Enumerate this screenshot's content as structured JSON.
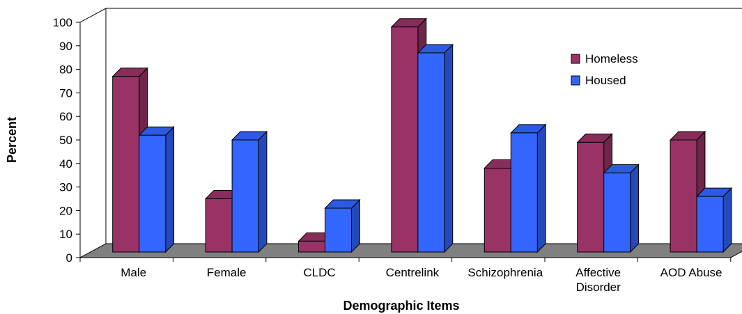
{
  "chart_data": {
    "type": "bar",
    "title": "",
    "xlabel": "Demographic Items",
    "ylabel": "Percent",
    "ylim": [
      0,
      100
    ],
    "yticks": [
      0,
      10,
      20,
      30,
      40,
      50,
      60,
      70,
      80,
      90,
      100
    ],
    "categories": [
      "Male",
      "Female",
      "CLDC",
      "Centrelink",
      "Schizophrenia",
      "Affective Disorder",
      "AOD Abuse"
    ],
    "series": [
      {
        "name": "Homeless",
        "color": "#993366",
        "values": [
          77,
          25,
          7,
          98,
          38,
          49,
          50
        ]
      },
      {
        "name": "Housed",
        "color": "#3366ff",
        "values": [
          52,
          50,
          21,
          87,
          53,
          36,
          26
        ]
      }
    ],
    "legend": "top-right",
    "grid": false,
    "style": "3d-clustered-column"
  }
}
